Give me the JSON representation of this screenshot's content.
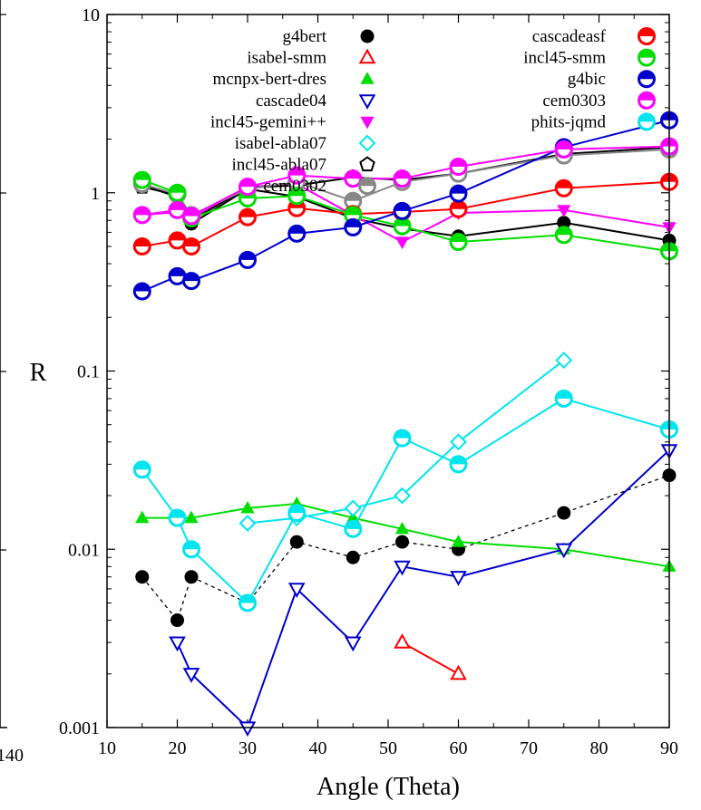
{
  "chart_data": {
    "type": "line",
    "title": "",
    "xlabel": "Angle (Theta)",
    "ylabel": "R",
    "xlim": [
      10,
      90
    ],
    "ylim": [
      0.001,
      10
    ],
    "yscale": "log",
    "x_ticks": [
      "10",
      "20",
      "30",
      "40",
      "50",
      "60",
      "70",
      "80",
      "90"
    ],
    "y_ticks": [
      "0.001",
      "0.01",
      "0.1",
      "1",
      "10"
    ],
    "left_edge_tick_label": "140",
    "grid": false,
    "legend_position": "top",
    "series": [
      {
        "name": "g4bert",
        "color": "#000000",
        "marker": "filled-circle",
        "dashed": false,
        "points": [
          [
            15,
            1.1
          ],
          [
            20,
            0.95
          ],
          [
            22,
            0.67
          ],
          [
            30,
            1.05
          ],
          [
            37,
            0.95
          ],
          [
            45,
            0.72
          ],
          [
            52,
            0.63
          ],
          [
            60,
            0.57
          ],
          [
            75,
            0.68
          ],
          [
            90,
            0.54
          ]
        ]
      },
      {
        "name": "g4bert",
        "color": "#000000",
        "marker": "filled-circle",
        "dashed": true,
        "points": [
          [
            15,
            0.007
          ],
          [
            20,
            0.004
          ],
          [
            22,
            0.007
          ],
          [
            30,
            0.005
          ],
          [
            37,
            0.011
          ],
          [
            45,
            0.009
          ],
          [
            52,
            0.011
          ],
          [
            60,
            0.01
          ],
          [
            75,
            0.016
          ],
          [
            90,
            0.026
          ]
        ]
      },
      {
        "name": "isabel-smm",
        "color": "#ff0000",
        "marker": "open-triangle",
        "dashed": false,
        "points": [
          [
            52,
            0.003
          ],
          [
            60,
            0.002
          ]
        ]
      },
      {
        "name": "mcnpx-bert-dres",
        "color": "#00dd00",
        "marker": "filled-triangle",
        "dashed": false,
        "points": [
          [
            15,
            0.015
          ],
          [
            20,
            0.015
          ],
          [
            22,
            0.015
          ],
          [
            30,
            0.017
          ],
          [
            37,
            0.018
          ],
          [
            45,
            0.015
          ],
          [
            52,
            0.013
          ],
          [
            60,
            0.011
          ],
          [
            75,
            0.01
          ],
          [
            90,
            0.008
          ]
        ]
      },
      {
        "name": "cascade04",
        "color": "#0000cc",
        "marker": "open-down-triangle",
        "dashed": false,
        "points": [
          [
            20,
            0.003
          ],
          [
            22,
            0.002
          ],
          [
            30,
            0.001
          ],
          [
            37,
            0.006
          ],
          [
            45,
            0.003
          ],
          [
            52,
            0.008
          ],
          [
            60,
            0.007
          ],
          [
            75,
            0.01
          ],
          [
            90,
            0.036
          ]
        ]
      },
      {
        "name": "incl45-gemini++",
        "color": "#ff00ff",
        "marker": "filled-down-triangle",
        "dashed": false,
        "points": [
          [
            15,
            0.75
          ],
          [
            20,
            0.78
          ],
          [
            22,
            0.72
          ],
          [
            30,
            1.08
          ],
          [
            37,
            1.12
          ],
          [
            45,
            0.75
          ],
          [
            52,
            0.53
          ],
          [
            60,
            0.77
          ],
          [
            75,
            0.8
          ],
          [
            90,
            0.64
          ]
        ]
      },
      {
        "name": "isabel-abla07",
        "color": "#00e5ee",
        "marker": "open-diamond",
        "dashed": false,
        "points": [
          [
            30,
            0.014
          ],
          [
            37,
            0.015
          ],
          [
            45,
            0.017
          ],
          [
            52,
            0.02
          ],
          [
            60,
            0.04
          ],
          [
            75,
            0.115
          ]
        ]
      },
      {
        "name": "incl45-abla07",
        "color": "#000000",
        "marker": "open-pentagon",
        "dashed": false,
        "points": [
          [
            15,
            1.08
          ],
          [
            20,
            0.97
          ],
          [
            22,
            0.7
          ],
          [
            30,
            1.07
          ],
          [
            37,
            1.1
          ],
          [
            45,
            1.22
          ],
          [
            52,
            1.18
          ],
          [
            60,
            1.28
          ],
          [
            75,
            1.65
          ],
          [
            90,
            1.8
          ]
        ]
      },
      {
        "name": "cem0302",
        "color": "#888888",
        "marker": "half-circle",
        "dashed": false,
        "points": [
          [
            15,
            1.12
          ],
          [
            20,
            0.98
          ],
          [
            22,
            0.75
          ],
          [
            30,
            1.05
          ],
          [
            37,
            1.15
          ],
          [
            45,
            0.9
          ],
          [
            52,
            1.15
          ],
          [
            60,
            1.28
          ],
          [
            75,
            1.62
          ],
          [
            90,
            1.75
          ]
        ]
      },
      {
        "name": "cascadeasf",
        "color": "#ff0000",
        "marker": "half-circle",
        "dashed": false,
        "points": [
          [
            15,
            0.5
          ],
          [
            20,
            0.54
          ],
          [
            22,
            0.5
          ],
          [
            30,
            0.73
          ],
          [
            37,
            0.82
          ],
          [
            45,
            0.76
          ],
          [
            52,
            0.78
          ],
          [
            60,
            0.81
          ],
          [
            75,
            1.06
          ],
          [
            90,
            1.15
          ]
        ]
      },
      {
        "name": "incl45-smm",
        "color": "#00dd00",
        "marker": "half-circle",
        "dashed": false,
        "points": [
          [
            15,
            1.18
          ],
          [
            20,
            1.0
          ],
          [
            22,
            0.72
          ],
          [
            30,
            0.93
          ],
          [
            37,
            0.96
          ],
          [
            45,
            0.75
          ],
          [
            52,
            0.65
          ],
          [
            60,
            0.53
          ],
          [
            75,
            0.58
          ],
          [
            90,
            0.47
          ]
        ]
      },
      {
        "name": "g4bic",
        "color": "#0000cc",
        "marker": "half-circle",
        "dashed": false,
        "points": [
          [
            15,
            0.28
          ],
          [
            20,
            0.34
          ],
          [
            22,
            0.32
          ],
          [
            30,
            0.42
          ],
          [
            37,
            0.59
          ],
          [
            45,
            0.64
          ],
          [
            52,
            0.79
          ],
          [
            60,
            0.99
          ],
          [
            75,
            1.8
          ],
          [
            90,
            2.55
          ]
        ]
      },
      {
        "name": "cem0303",
        "color": "#ff00ff",
        "marker": "half-circle",
        "dashed": false,
        "points": [
          [
            15,
            0.75
          ],
          [
            20,
            0.8
          ],
          [
            22,
            0.74
          ],
          [
            30,
            1.08
          ],
          [
            37,
            1.25
          ],
          [
            45,
            1.2
          ],
          [
            52,
            1.2
          ],
          [
            60,
            1.4
          ],
          [
            75,
            1.75
          ],
          [
            90,
            1.82
          ]
        ]
      },
      {
        "name": "phits-jqmd",
        "color": "#00e5ee",
        "marker": "half-circle",
        "dashed": false,
        "points": [
          [
            15,
            0.028
          ],
          [
            20,
            0.015
          ],
          [
            22,
            0.01
          ],
          [
            30,
            0.005
          ],
          [
            37,
            0.016
          ],
          [
            45,
            0.013
          ],
          [
            52,
            0.042
          ],
          [
            60,
            0.03
          ],
          [
            75,
            0.07
          ],
          [
            90,
            0.047
          ]
        ]
      }
    ]
  },
  "legend_left": [
    {
      "label": "g4bert",
      "color": "#000000",
      "marker": "filled-circle"
    },
    {
      "label": "isabel-smm",
      "color": "#ff0000",
      "marker": "open-triangle"
    },
    {
      "label": "mcnpx-bert-dres",
      "color": "#00dd00",
      "marker": "filled-triangle"
    },
    {
      "label": "cascade04",
      "color": "#0000cc",
      "marker": "open-down-triangle"
    },
    {
      "label": "incl45-gemini++",
      "color": "#ff00ff",
      "marker": "filled-down-triangle"
    },
    {
      "label": "isabel-abla07",
      "color": "#00e5ee",
      "marker": "open-diamond"
    },
    {
      "label": "incl45-abla07",
      "color": "#000000",
      "marker": "open-pentagon"
    },
    {
      "label": "cem0302",
      "color": "#888888",
      "marker": "half-circle"
    }
  ],
  "legend_right": [
    {
      "label": "cascadeasf",
      "color": "#ff0000",
      "marker": "half-circle"
    },
    {
      "label": "incl45-smm",
      "color": "#00dd00",
      "marker": "half-circle"
    },
    {
      "label": "g4bic",
      "color": "#0000cc",
      "marker": "half-circle"
    },
    {
      "label": "cem0303",
      "color": "#ff00ff",
      "marker": "half-circle"
    },
    {
      "label": "phits-jqmd",
      "color": "#00e5ee",
      "marker": "half-circle"
    }
  ]
}
